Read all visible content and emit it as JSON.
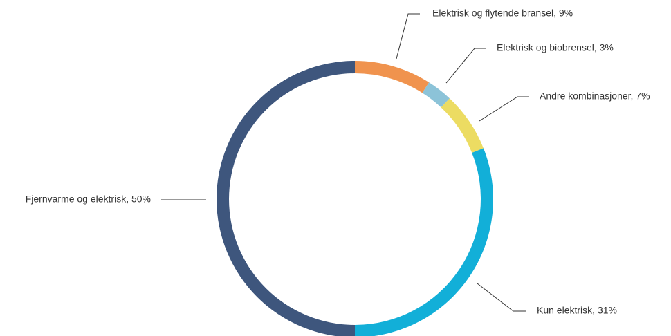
{
  "chart_data": {
    "type": "donut",
    "values": [
      9,
      3,
      7,
      31,
      50
    ],
    "value_labels": [
      "Elektrisk og flytende bransel, 9%",
      "Elektrisk og biobrensel, 3%",
      "Andre kombinasjoner, 7%",
      "Kun elektrisk, 31%",
      "Fjernvarme og elektrisk, 50%"
    ],
    "colors": [
      "#f0934e",
      "#8cc3d8",
      "#ecdc62",
      "#12afd8",
      "#3e567d"
    ]
  }
}
